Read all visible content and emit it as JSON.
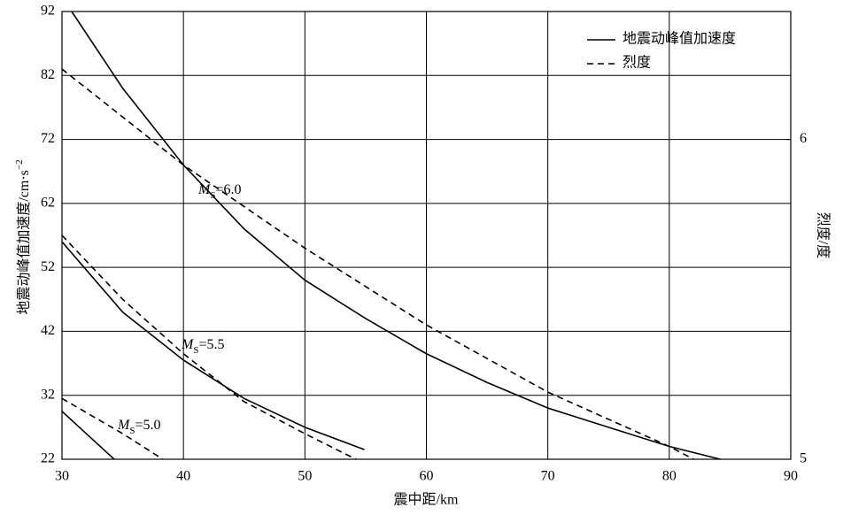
{
  "chart_data": {
    "type": "line",
    "xlabel": "震中距/km",
    "ylabel": "地震动峰值加速度/cm·s",
    "ylabel_sup": "−2",
    "y2label": "烈度/度",
    "xlim": [
      30,
      90
    ],
    "xticks": [
      30,
      40,
      50,
      60,
      70,
      80,
      90
    ],
    "ylim": [
      22,
      92
    ],
    "yticks": [
      22,
      32,
      42,
      52,
      62,
      72,
      82,
      92
    ],
    "y2lim": [
      5,
      6.4
    ],
    "y2ticks": [
      5,
      6
    ],
    "grid": true,
    "legend": [
      {
        "label": "地震动峰值加速度",
        "dash": "solid"
      },
      {
        "label": "烈度",
        "dash": "dashed"
      }
    ],
    "series": [
      {
        "color": "#000000",
        "dash": "solid",
        "x": [
          30.8,
          35,
          40,
          45,
          50,
          55,
          60,
          65,
          70,
          75,
          80,
          84.2
        ],
        "values": [
          92,
          80,
          68,
          58,
          50,
          44,
          38.5,
          34,
          30,
          27,
          24,
          22
        ]
      },
      {
        "color": "#000000",
        "dash": "dashed",
        "axis": "y2",
        "x": [
          30,
          40,
          50,
          60,
          70,
          80,
          82
        ],
        "values": [
          6.22,
          5.92,
          5.66,
          5.42,
          5.21,
          5.04,
          5.0
        ]
      },
      {
        "color": "#000000",
        "dash": "solid",
        "x": [
          30,
          35,
          40,
          45,
          50,
          54.9
        ],
        "values": [
          56,
          45,
          37.5,
          31.5,
          27,
          23.5
        ]
      },
      {
        "color": "#000000",
        "dash": "dashed",
        "axis": "y2",
        "x": [
          30,
          35,
          40,
          45,
          50,
          54.2
        ],
        "values": [
          5.7,
          5.5,
          5.33,
          5.18,
          5.08,
          5.0
        ]
      },
      {
        "color": "#000000",
        "dash": "solid",
        "x": [
          30,
          32,
          34.3
        ],
        "values": [
          29.5,
          26,
          22
        ]
      },
      {
        "color": "#000000",
        "dash": "dashed",
        "axis": "y2",
        "x": [
          30,
          35,
          38.3
        ],
        "values": [
          5.19,
          5.08,
          5.0
        ]
      }
    ],
    "annotations": [
      {
        "symbol": "M",
        "subscript": "S",
        "text": "=6.0"
      },
      {
        "symbol": "M",
        "subscript": "S",
        "text": "=5.5"
      },
      {
        "symbol": "M",
        "subscript": "S",
        "text": "=5.0"
      }
    ]
  }
}
